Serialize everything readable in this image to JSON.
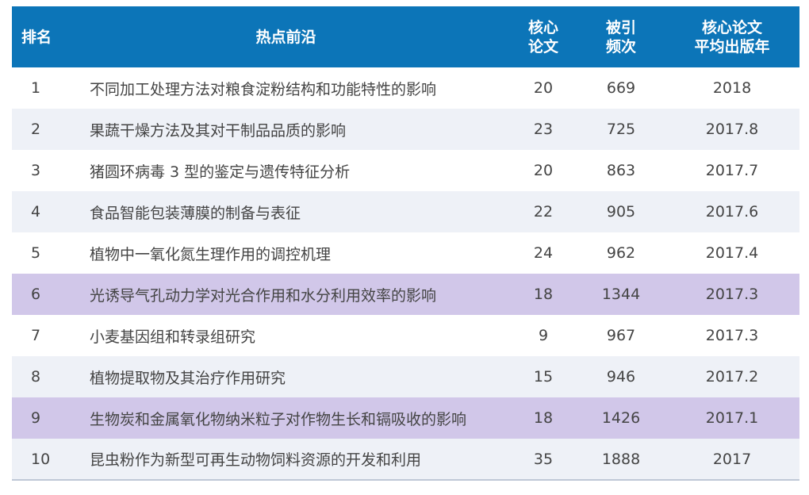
{
  "headers": {
    "rank": "排名",
    "topic": "热点前沿",
    "core_papers": [
      "核心",
      "论文"
    ],
    "citations": [
      "被引",
      "频次"
    ],
    "avg_year": [
      "核心论文",
      "平均出版年"
    ]
  },
  "rows": [
    {
      "rank": "1",
      "topic": "不同加工处理方法对粮食淀粉结构和功能特性的影响",
      "core": "20",
      "cites": "669",
      "year": "2018",
      "highlight": false
    },
    {
      "rank": "2",
      "topic": "果蔬干燥方法及其对干制品品质的影响",
      "core": "23",
      "cites": "725",
      "year": "2017.8",
      "highlight": false
    },
    {
      "rank": "3",
      "topic": "猪圆环病毒 3 型的鉴定与遗传特征分析",
      "core": "20",
      "cites": "863",
      "year": "2017.7",
      "highlight": false
    },
    {
      "rank": "4",
      "topic": "食品智能包装薄膜的制备与表征",
      "core": "22",
      "cites": "905",
      "year": "2017.6",
      "highlight": false
    },
    {
      "rank": "5",
      "topic": "植物中一氧化氮生理作用的调控机理",
      "core": "24",
      "cites": "962",
      "year": "2017.4",
      "highlight": false
    },
    {
      "rank": "6",
      "topic": "光诱导气孔动力学对光合作用和水分利用效率的影响",
      "core": "18",
      "cites": "1344",
      "year": "2017.3",
      "highlight": true
    },
    {
      "rank": "7",
      "topic": "小麦基因组和转录组研究",
      "core": "9",
      "cites": "967",
      "year": "2017.3",
      "highlight": false
    },
    {
      "rank": "8",
      "topic": "植物提取物及其治疗作用研究",
      "core": "15",
      "cites": "946",
      "year": "2017.2",
      "highlight": false
    },
    {
      "rank": "9",
      "topic": "生物炭和金属氧化物纳米粒子对作物生长和镉吸收的影响",
      "core": "18",
      "cites": "1426",
      "year": "2017.1",
      "highlight": true
    },
    {
      "rank": "10",
      "topic": "昆虫粉作为新型可再生动物饲料资源的开发和利用",
      "core": "35",
      "cites": "1888",
      "year": "2017",
      "highlight": false
    }
  ],
  "colors": {
    "header_bg": "#0c75b8",
    "stripe": "#eef1f7",
    "highlight": "#d1c7e9"
  }
}
